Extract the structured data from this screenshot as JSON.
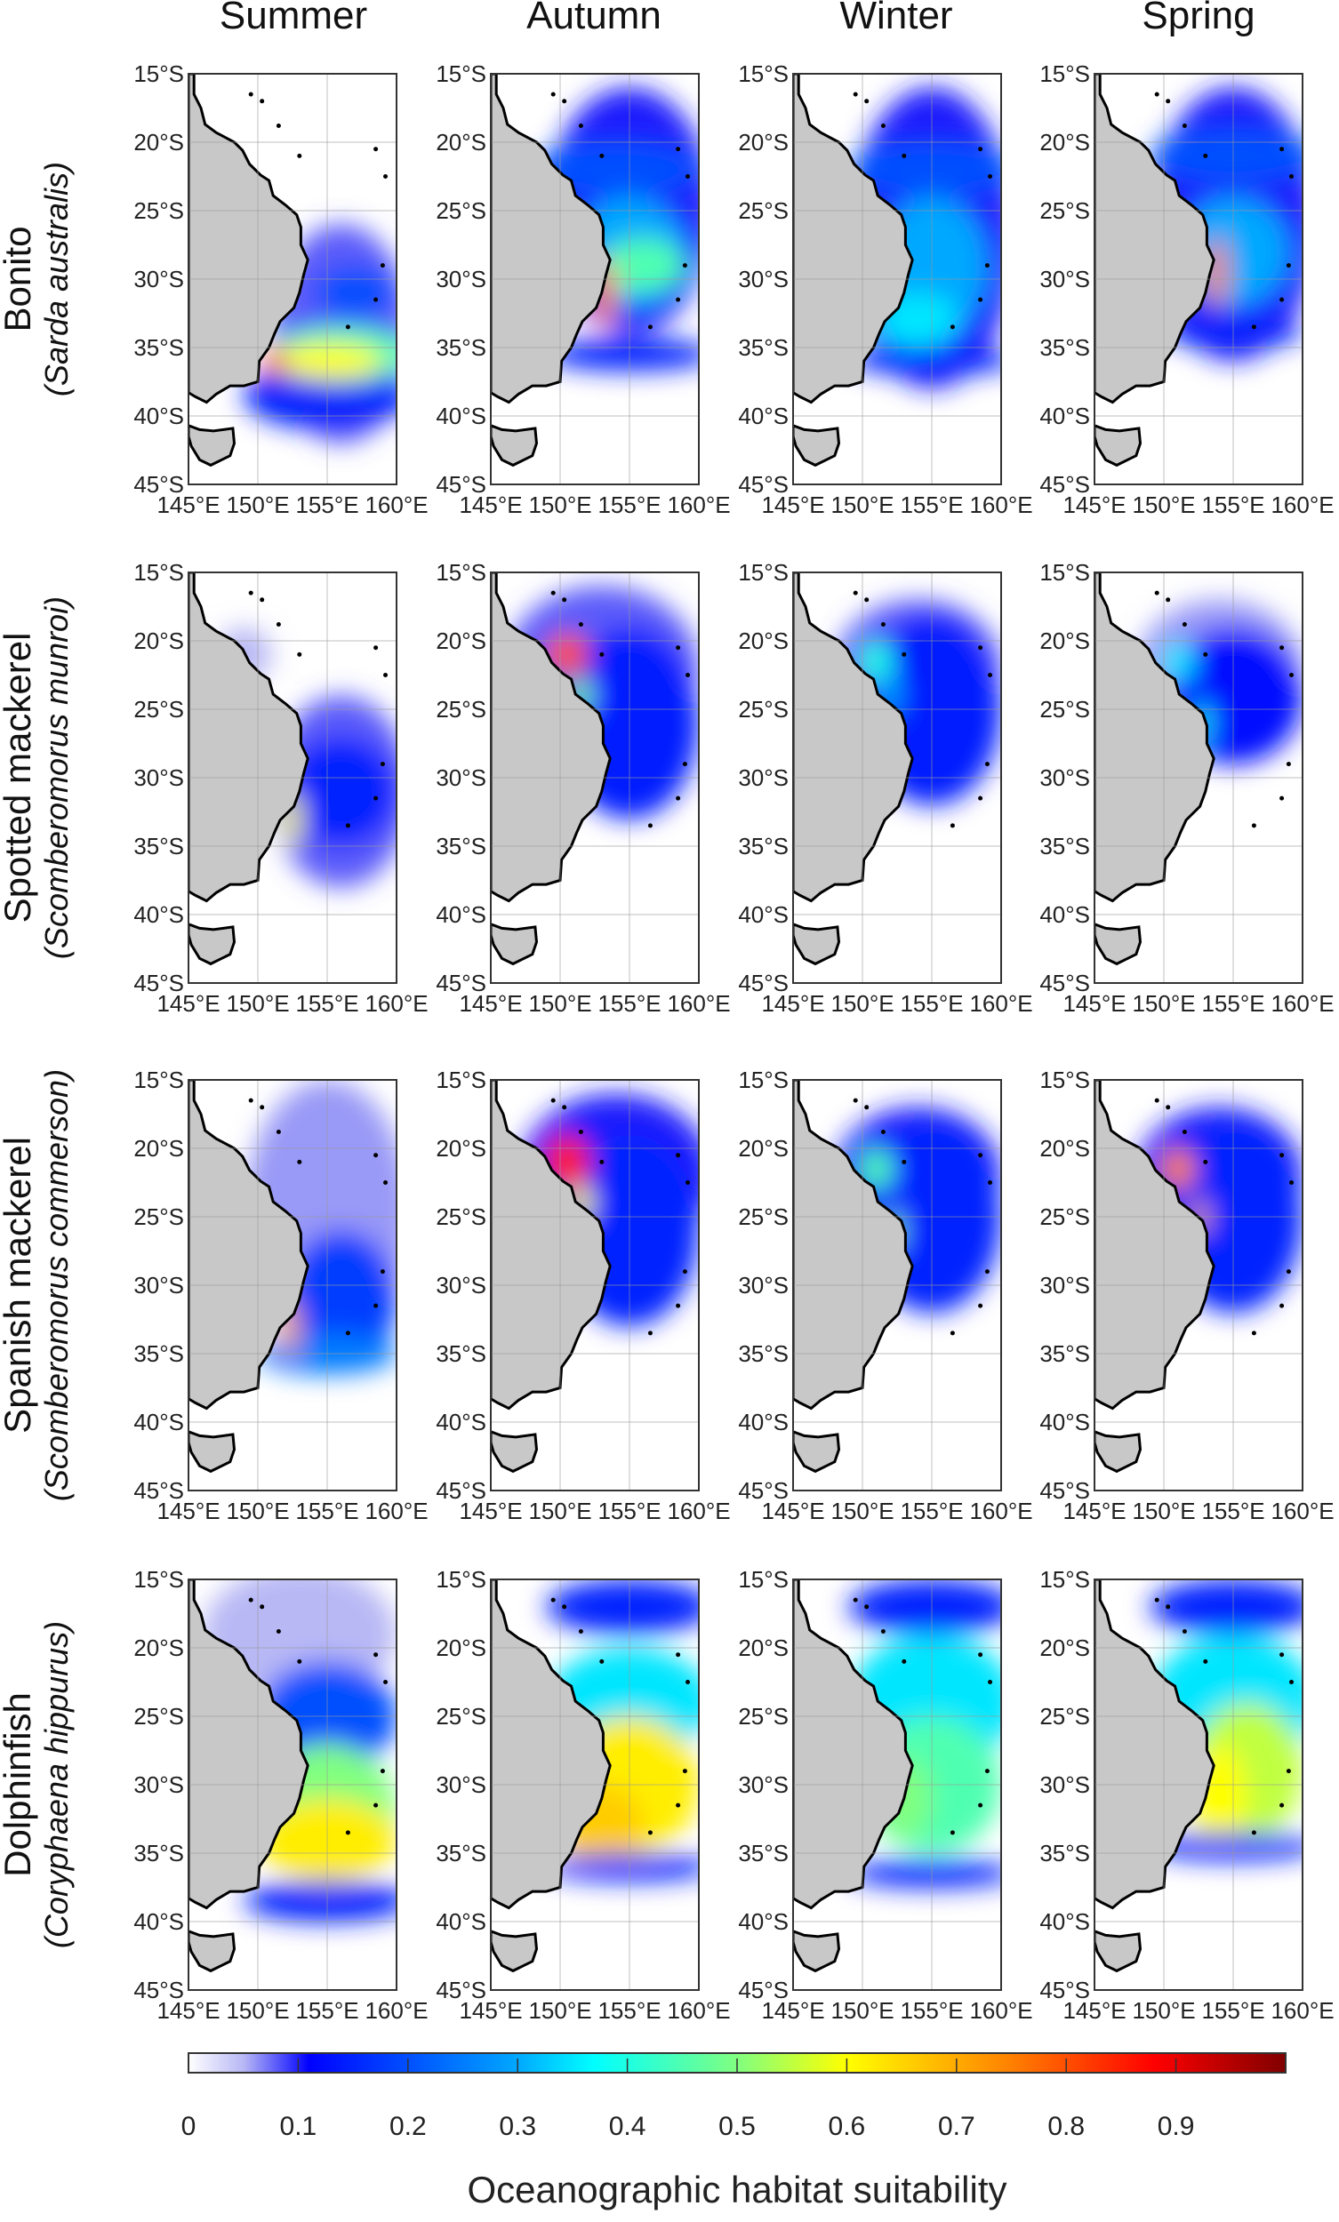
{
  "chart_data": {
    "type": "heatmap",
    "title": "",
    "seasons": [
      "Summer",
      "Autumn",
      "Winter",
      "Spring"
    ],
    "species": [
      {
        "common": "Bonito",
        "scientific": "Sarda australis"
      },
      {
        "common": "Spotted mackerel",
        "scientific": "Scomberomorus munroi"
      },
      {
        "common": "Spanish mackerel",
        "scientific": "Scomberomorus commerson"
      },
      {
        "common": "Dolphinfish",
        "scientific": "Coryphaena hippurus"
      }
    ],
    "lat_ticks": [
      "15°S",
      "20°S",
      "25°S",
      "30°S",
      "35°S",
      "40°S",
      "45°S"
    ],
    "lat_values": [
      -15,
      -20,
      -25,
      -30,
      -35,
      -40,
      -45
    ],
    "lon_ticks": [
      "145°E",
      "150°E",
      "155°E",
      "160°E"
    ],
    "lon_values": [
      145,
      150,
      155,
      160
    ],
    "xlim": [
      145,
      160
    ],
    "ylim": [
      -45,
      -15
    ],
    "grid": true,
    "colorbar": {
      "label": "Oceanographic habitat suitability",
      "ticks": [
        "0",
        "0.1",
        "0.2",
        "0.3",
        "0.4",
        "0.5",
        "0.6",
        "0.7",
        "0.8",
        "0.9"
      ],
      "tick_values": [
        0,
        0.1,
        0.2,
        0.3,
        0.4,
        0.5,
        0.6,
        0.7,
        0.8,
        0.9
      ],
      "range": [
        0,
        1
      ],
      "placement": "bottom"
    },
    "suitability_hotspots": [
      [
        [
          [
            156,
            -34,
            5,
            8,
            0.08
          ],
          [
            155,
            -38.5,
            6,
            2.5,
            0.15
          ],
          [
            156,
            -35.5,
            5,
            2,
            0.45
          ],
          [
            155,
            -36,
            4,
            1.3,
            0.6
          ],
          [
            151.2,
            -36,
            0.8,
            1,
            0.78
          ],
          [
            157,
            -31,
            3,
            2,
            0.2
          ]
        ],
        [
          [
            155,
            -25,
            6,
            9,
            0.1
          ],
          [
            154,
            -22,
            6,
            2,
            0.2
          ],
          [
            155,
            -28,
            4,
            4,
            0.3
          ],
          [
            156,
            -29,
            3,
            2,
            0.45
          ],
          [
            153.2,
            -31,
            0.8,
            2.5,
            0.75
          ],
          [
            155,
            -35.5,
            6,
            1.2,
            0.15
          ]
        ],
        [
          [
            155,
            -27,
            6,
            11,
            0.1
          ],
          [
            155,
            -22,
            6,
            2,
            0.2
          ],
          [
            155,
            -29,
            4,
            5,
            0.3
          ],
          [
            154,
            -33,
            3,
            2,
            0.35
          ],
          [
            155,
            -36,
            6,
            1,
            0.15
          ]
        ],
        [
          [
            155,
            -26,
            6,
            10,
            0.1
          ],
          [
            155,
            -21,
            6,
            2,
            0.2
          ],
          [
            155,
            -28,
            4,
            4,
            0.3
          ],
          [
            153.8,
            -29.5,
            0.7,
            2.5,
            0.75
          ],
          [
            155,
            -34,
            5,
            1,
            0.15
          ]
        ]
      ],
      [
        [
          [
            156,
            -31,
            5,
            7,
            0.08
          ],
          [
            156,
            -31,
            4,
            4,
            0.15
          ],
          [
            152.5,
            -33,
            0.6,
            2,
            0.6
          ],
          [
            149,
            -21,
            2,
            2,
            0.05
          ]
        ],
        [
          [
            153,
            -22,
            7,
            6,
            0.08
          ],
          [
            155,
            -26,
            5,
            7,
            0.14
          ],
          [
            150.5,
            -21,
            1.5,
            1.5,
            0.8
          ],
          [
            151.5,
            -24,
            0.8,
            1.2,
            0.5
          ]
        ],
        [
          [
            154,
            -22,
            6,
            5,
            0.08
          ],
          [
            155,
            -25,
            5,
            7,
            0.14
          ],
          [
            151,
            -21.5,
            1.2,
            1.5,
            0.4
          ],
          [
            152,
            -24,
            0.7,
            1.5,
            0.3
          ]
        ],
        [
          [
            154,
            -22,
            6,
            5,
            0.06
          ],
          [
            155,
            -24,
            5,
            5,
            0.12
          ],
          [
            151,
            -21.5,
            1.2,
            1.5,
            0.35
          ],
          [
            152.8,
            -26,
            0.5,
            1.5,
            0.4
          ]
        ]
      ],
      [
        [
          [
            155,
            -25,
            6,
            10,
            0.06
          ],
          [
            156,
            -31,
            4,
            5,
            0.18
          ],
          [
            155,
            -35,
            5,
            1.5,
            0.25
          ],
          [
            152.3,
            -33,
            0.6,
            2,
            0.7
          ]
        ],
        [
          [
            154,
            -22,
            7,
            6,
            0.1
          ],
          [
            155,
            -26,
            5,
            7,
            0.15
          ],
          [
            150.5,
            -21,
            1.6,
            2,
            0.85
          ],
          [
            151.5,
            -24,
            0.8,
            1.2,
            0.6
          ]
        ],
        [
          [
            154,
            -22,
            6,
            5,
            0.1
          ],
          [
            155,
            -25,
            5,
            7,
            0.15
          ],
          [
            151,
            -21.5,
            1.2,
            1.5,
            0.45
          ],
          [
            152.3,
            -26,
            0.5,
            1.5,
            0.5
          ]
        ],
        [
          [
            154,
            -22,
            6,
            5,
            0.1
          ],
          [
            155,
            -25,
            5,
            7,
            0.15
          ],
          [
            151,
            -21.5,
            1.2,
            1.5,
            0.75
          ],
          [
            152.6,
            -25,
            0.5,
            1.2,
            0.7
          ]
        ]
      ],
      [
        [
          [
            153,
            -19,
            7,
            5,
            0.05
          ],
          [
            155,
            -25,
            5,
            4,
            0.2
          ],
          [
            155,
            -32,
            5,
            5,
            0.5
          ],
          [
            155,
            -34,
            5,
            3,
            0.62
          ],
          [
            155,
            -38.5,
            6,
            1.5,
            0.15
          ]
        ],
        [
          [
            155,
            -17,
            6,
            2,
            0.15
          ],
          [
            155,
            -24,
            6,
            4,
            0.35
          ],
          [
            155,
            -30,
            5,
            5,
            0.62
          ],
          [
            153,
            -33,
            3,
            3,
            0.66
          ],
          [
            155,
            -36,
            6,
            1,
            0.15
          ]
        ],
        [
          [
            155,
            -17,
            6,
            2,
            0.15
          ],
          [
            155,
            -24,
            6,
            5,
            0.35
          ],
          [
            155,
            -30,
            5,
            5,
            0.45
          ],
          [
            153,
            -31,
            2,
            3,
            0.5
          ],
          [
            155,
            -36.5,
            6,
            1,
            0.15
          ]
        ],
        [
          [
            155,
            -17,
            6,
            2,
            0.15
          ],
          [
            155,
            -24,
            6,
            5,
            0.35
          ],
          [
            156,
            -29,
            4,
            5,
            0.55
          ],
          [
            154,
            -31,
            2,
            4,
            0.6
          ],
          [
            155,
            -34.5,
            6,
            1,
            0.15
          ]
        ]
      ]
    ]
  }
}
